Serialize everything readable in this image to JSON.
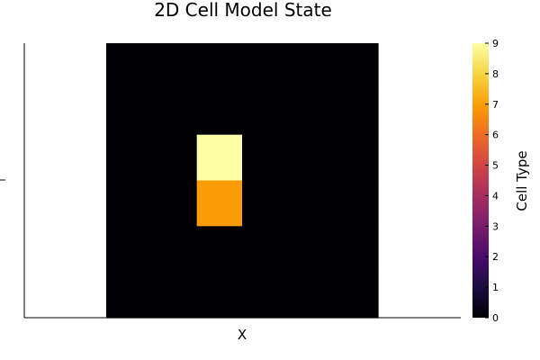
{
  "chart_data": {
    "type": "heatmap",
    "title": "2D Cell Model State",
    "xlabel": "X",
    "ylabel": "",
    "colorbar": {
      "label": "Cell Type",
      "colormap": "inferno",
      "range": [
        0,
        9
      ],
      "ticks": [
        "0",
        "1",
        "2",
        "3",
        "4",
        "5",
        "6",
        "7",
        "8",
        "9"
      ]
    },
    "grid_shape": [
      6,
      6
    ],
    "cells": [
      [
        0,
        0,
        0,
        0,
        0,
        0
      ],
      [
        0,
        0,
        0,
        0,
        0,
        0
      ],
      [
        0,
        0,
        9,
        0,
        0,
        0
      ],
      [
        0,
        0,
        7,
        0,
        0,
        0
      ],
      [
        0,
        0,
        0,
        0,
        0,
        0
      ],
      [
        0,
        0,
        0,
        0,
        0,
        0
      ]
    ],
    "grid": false,
    "legend": "none"
  }
}
